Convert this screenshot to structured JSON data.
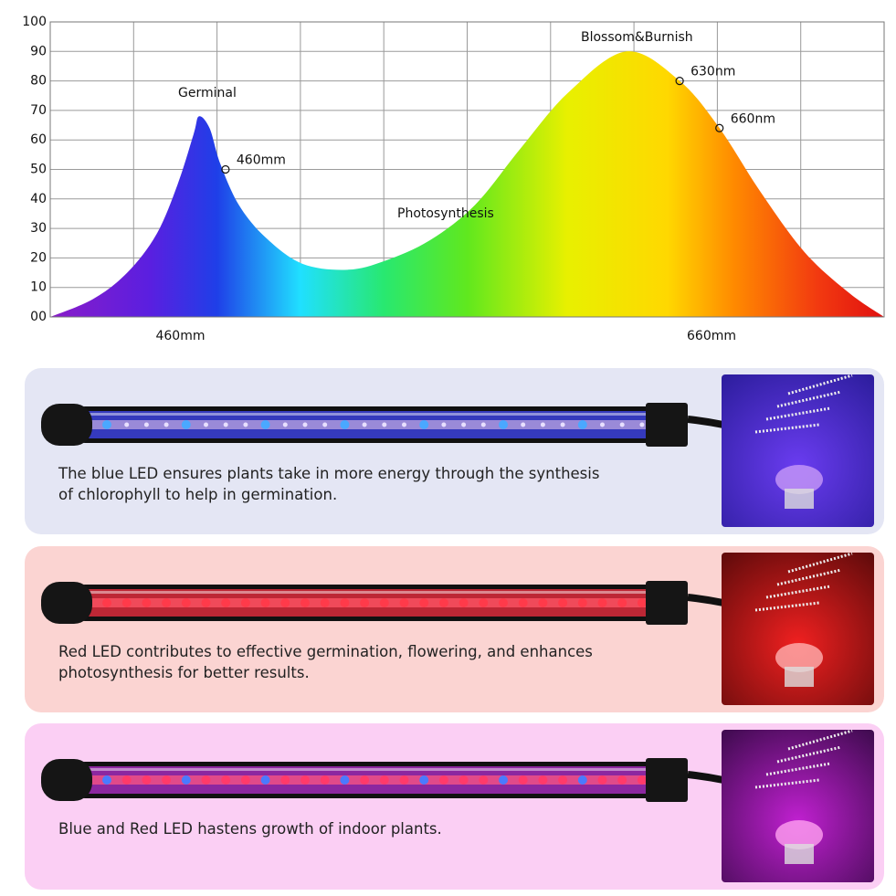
{
  "chart_data": {
    "type": "area",
    "x": [
      411,
      427,
      440,
      451,
      459,
      465,
      467,
      471,
      475,
      482,
      492,
      506,
      523,
      537,
      554,
      571,
      588,
      606,
      628,
      648,
      663,
      678,
      695,
      712,
      725
    ],
    "values": [
      0,
      6,
      15,
      28,
      45,
      62,
      68,
      64,
      52,
      38,
      27,
      18,
      16,
      19,
      26,
      38,
      57,
      76,
      90,
      80,
      64,
      43,
      22,
      8,
      0
    ],
    "xlim": [
      411,
      725
    ],
    "ylim": [
      0,
      100
    ],
    "yticks": [
      {
        "value": 0,
        "label": "00"
      },
      10,
      20,
      30,
      40,
      50,
      60,
      70,
      80,
      90,
      100
    ],
    "xticks": [
      {
        "value": 460,
        "label": "460mm"
      },
      {
        "value": 660,
        "label": "660mm"
      }
    ],
    "grid": true,
    "markers": [
      {
        "x": 477,
        "y": 50,
        "label": "460mm"
      },
      {
        "x": 648,
        "y": 80,
        "label": "630nm"
      },
      {
        "x": 663,
        "y": 64,
        "label": "660nm"
      }
    ],
    "annotations": [
      "Germinal",
      "Photosynthesis",
      "Blossom&Burnish"
    ]
  },
  "panels": [
    {
      "text": "The blue LED ensures plants take in more energy through the synthesis of chlorophyll to help in germination."
    },
    {
      "text": "Red LED contributes to effective germination, flowering, and enhances photosynthesis for better results."
    },
    {
      "text": "Blue and Red LED hastens growth of indoor plants."
    }
  ]
}
